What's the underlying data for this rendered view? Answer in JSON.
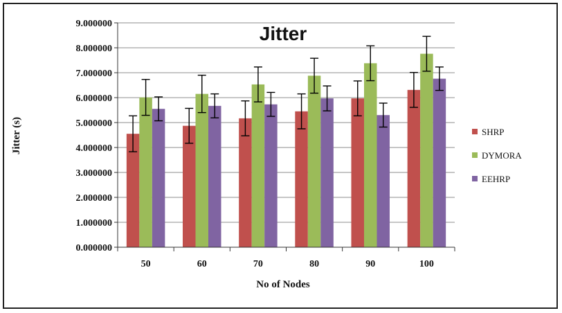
{
  "chart_data": {
    "type": "bar",
    "title": "Jitter",
    "xlabel": "No of Nodes",
    "ylabel": "Jitter (s)",
    "ylim": [
      0,
      9
    ],
    "yticks": [
      "0.000000",
      "1.000000",
      "2.000000",
      "3.000000",
      "4.000000",
      "5.000000",
      "6.000000",
      "7.000000",
      "8.000000",
      "9.000000"
    ],
    "categories": [
      "50",
      "60",
      "70",
      "80",
      "90",
      "100"
    ],
    "legend_position": "right",
    "error_bars": true,
    "series": [
      {
        "name": "SHRP",
        "color": "#c0504d",
        "values": [
          4.55,
          4.87,
          5.17,
          5.45,
          5.97,
          6.31
        ],
        "errors": [
          0.72,
          0.7,
          0.7,
          0.7,
          0.7,
          0.7
        ]
      },
      {
        "name": "DYMORA",
        "color": "#9bbb59",
        "values": [
          6.01,
          6.15,
          6.53,
          6.88,
          7.38,
          7.76
        ],
        "errors": [
          0.72,
          0.75,
          0.7,
          0.7,
          0.7,
          0.7
        ]
      },
      {
        "name": "EEHRP",
        "color": "#8064a2",
        "values": [
          5.55,
          5.67,
          5.73,
          5.97,
          5.3,
          6.76
        ],
        "errors": [
          0.48,
          0.48,
          0.48,
          0.5,
          0.48,
          0.47
        ]
      }
    ]
  }
}
